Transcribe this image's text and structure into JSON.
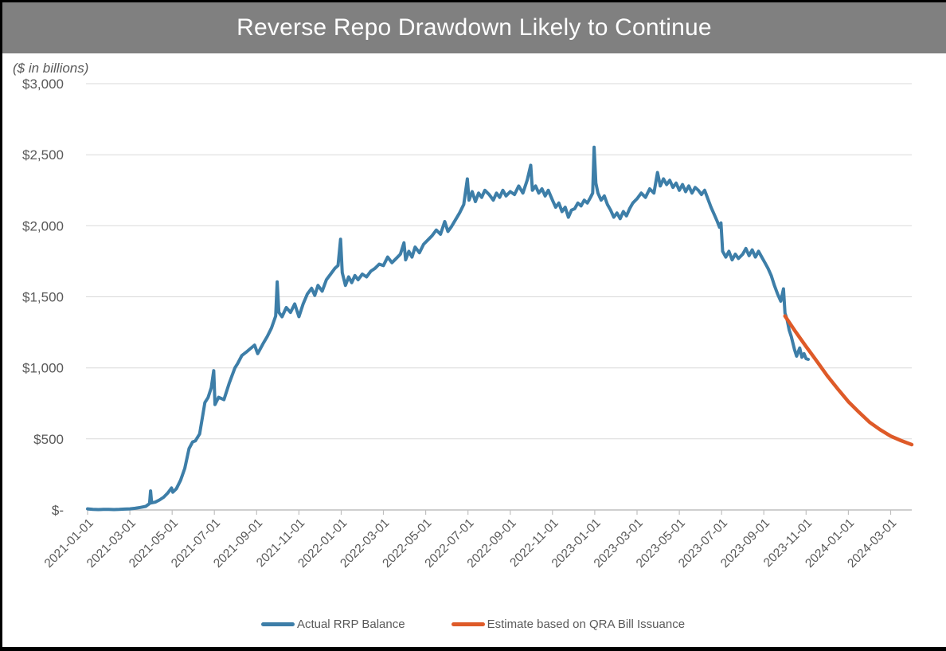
{
  "title": "Reverse Repo Drawdown Likely to Continue",
  "units_note": "($ in billions)",
  "colors": {
    "page_border": "#000000",
    "title_bar_bg": "#808080",
    "title_text": "#FFFFFF",
    "axis_text": "#595959",
    "gridline": "#D9D9D9",
    "axis_line": "#BFBFBF",
    "actual_line": "#3D7EA8",
    "estimate_line": "#DE5A28"
  },
  "chart_data": {
    "type": "line",
    "title": "Reverse Repo Drawdown Likely to Continue",
    "ylabel": "($ in billions)",
    "xlabel": "",
    "grid": "horizontal",
    "legend_position": "bottom",
    "ylim": [
      0,
      3000
    ],
    "ytick_values": [
      3000,
      2500,
      2000,
      1500,
      1000,
      500,
      0
    ],
    "ytick_labels": [
      "$3,000",
      "$2,500",
      "$2,000",
      "$1,500",
      "$1,000",
      "$500",
      "$-"
    ],
    "x_unit": "months since 2021-01-01",
    "xlim_months": [
      0,
      39
    ],
    "xtick_months": [
      0,
      2,
      4,
      6,
      8,
      10,
      12,
      14,
      16,
      18,
      20,
      22,
      24,
      26,
      28,
      30,
      32,
      34,
      36,
      38
    ],
    "xtick_labels": [
      "2021-01-01",
      "2021-03-01",
      "2021-05-01",
      "2021-07-01",
      "2021-09-01",
      "2021-11-01",
      "2022-01-01",
      "2022-03-01",
      "2022-05-01",
      "2022-07-01",
      "2022-09-01",
      "2022-11-01",
      "2023-01-01",
      "2023-03-01",
      "2023-05-01",
      "2023-07-01",
      "2023-09-01",
      "2023-11-01",
      "2024-01-01",
      "2024-03-01"
    ],
    "series": [
      {
        "name": "Actual RRP Balance",
        "color": "#3D7EA8",
        "stroke_width": 4,
        "points": [
          [
            0,
            8
          ],
          [
            0.25,
            4
          ],
          [
            0.5,
            3
          ],
          [
            0.75,
            4
          ],
          [
            1,
            4
          ],
          [
            1.25,
            3
          ],
          [
            1.5,
            4
          ],
          [
            1.75,
            6
          ],
          [
            2,
            8
          ],
          [
            2.25,
            12
          ],
          [
            2.5,
            18
          ],
          [
            2.75,
            25
          ],
          [
            2.93,
            45
          ],
          [
            2.98,
            134
          ],
          [
            3.03,
            50
          ],
          [
            3.2,
            55
          ],
          [
            3.4,
            70
          ],
          [
            3.6,
            90
          ],
          [
            3.8,
            120
          ],
          [
            3.97,
            155
          ],
          [
            4.03,
            125
          ],
          [
            4.2,
            150
          ],
          [
            4.4,
            209
          ],
          [
            4.6,
            294
          ],
          [
            4.8,
            432
          ],
          [
            4.97,
            479
          ],
          [
            5.1,
            486
          ],
          [
            5.3,
            535
          ],
          [
            5.55,
            756
          ],
          [
            5.7,
            791
          ],
          [
            5.85,
            860
          ],
          [
            5.97,
            980
          ],
          [
            6.03,
            742
          ],
          [
            6.2,
            793
          ],
          [
            6.45,
            776
          ],
          [
            6.7,
            891
          ],
          [
            6.97,
            1000
          ],
          [
            7.1,
            1030
          ],
          [
            7.3,
            1087
          ],
          [
            7.5,
            1110
          ],
          [
            7.7,
            1135
          ],
          [
            7.9,
            1160
          ],
          [
            8.05,
            1100
          ],
          [
            8.3,
            1170
          ],
          [
            8.5,
            1220
          ],
          [
            8.7,
            1280
          ],
          [
            8.9,
            1365
          ],
          [
            8.97,
            1605
          ],
          [
            9.05,
            1390
          ],
          [
            9.2,
            1360
          ],
          [
            9.4,
            1425
          ],
          [
            9.6,
            1390
          ],
          [
            9.8,
            1450
          ],
          [
            10,
            1360
          ],
          [
            10.2,
            1450
          ],
          [
            10.4,
            1520
          ],
          [
            10.6,
            1560
          ],
          [
            10.75,
            1510
          ],
          [
            10.9,
            1580
          ],
          [
            11.1,
            1540
          ],
          [
            11.3,
            1620
          ],
          [
            11.5,
            1660
          ],
          [
            11.7,
            1700
          ],
          [
            11.85,
            1720
          ],
          [
            11.97,
            1905
          ],
          [
            12.05,
            1670
          ],
          [
            12.2,
            1580
          ],
          [
            12.35,
            1640
          ],
          [
            12.5,
            1600
          ],
          [
            12.65,
            1650
          ],
          [
            12.8,
            1620
          ],
          [
            13,
            1660
          ],
          [
            13.2,
            1640
          ],
          [
            13.4,
            1680
          ],
          [
            13.6,
            1700
          ],
          [
            13.8,
            1730
          ],
          [
            14,
            1720
          ],
          [
            14.2,
            1780
          ],
          [
            14.4,
            1740
          ],
          [
            14.6,
            1770
          ],
          [
            14.8,
            1800
          ],
          [
            14.97,
            1880
          ],
          [
            15.05,
            1760
          ],
          [
            15.2,
            1820
          ],
          [
            15.35,
            1780
          ],
          [
            15.5,
            1850
          ],
          [
            15.7,
            1810
          ],
          [
            15.9,
            1870
          ],
          [
            16.1,
            1900
          ],
          [
            16.3,
            1930
          ],
          [
            16.5,
            1970
          ],
          [
            16.7,
            1940
          ],
          [
            16.9,
            2030
          ],
          [
            17.05,
            1960
          ],
          [
            17.2,
            1990
          ],
          [
            17.4,
            2040
          ],
          [
            17.6,
            2090
          ],
          [
            17.8,
            2150
          ],
          [
            17.97,
            2330
          ],
          [
            18.05,
            2180
          ],
          [
            18.2,
            2240
          ],
          [
            18.35,
            2170
          ],
          [
            18.5,
            2230
          ],
          [
            18.65,
            2200
          ],
          [
            18.8,
            2250
          ],
          [
            19,
            2220
          ],
          [
            19.2,
            2180
          ],
          [
            19.35,
            2230
          ],
          [
            19.5,
            2200
          ],
          [
            19.65,
            2250
          ],
          [
            19.8,
            2210
          ],
          [
            20,
            2240
          ],
          [
            20.2,
            2220
          ],
          [
            20.4,
            2280
          ],
          [
            20.6,
            2230
          ],
          [
            20.8,
            2320
          ],
          [
            20.97,
            2426
          ],
          [
            21.05,
            2250
          ],
          [
            21.2,
            2280
          ],
          [
            21.35,
            2230
          ],
          [
            21.5,
            2260
          ],
          [
            21.65,
            2210
          ],
          [
            21.8,
            2250
          ],
          [
            22,
            2180
          ],
          [
            22.15,
            2130
          ],
          [
            22.3,
            2160
          ],
          [
            22.45,
            2100
          ],
          [
            22.6,
            2130
          ],
          [
            22.75,
            2060
          ],
          [
            22.9,
            2110
          ],
          [
            23.05,
            2120
          ],
          [
            23.2,
            2160
          ],
          [
            23.35,
            2140
          ],
          [
            23.5,
            2180
          ],
          [
            23.65,
            2160
          ],
          [
            23.8,
            2200
          ],
          [
            23.9,
            2230
          ],
          [
            23.97,
            2553
          ],
          [
            24.05,
            2300
          ],
          [
            24.15,
            2230
          ],
          [
            24.3,
            2180
          ],
          [
            24.45,
            2210
          ],
          [
            24.6,
            2150
          ],
          [
            24.75,
            2110
          ],
          [
            24.9,
            2060
          ],
          [
            25.05,
            2090
          ],
          [
            25.2,
            2050
          ],
          [
            25.35,
            2100
          ],
          [
            25.5,
            2070
          ],
          [
            25.65,
            2120
          ],
          [
            25.8,
            2160
          ],
          [
            26,
            2190
          ],
          [
            26.2,
            2230
          ],
          [
            26.4,
            2200
          ],
          [
            26.6,
            2260
          ],
          [
            26.8,
            2230
          ],
          [
            26.97,
            2375
          ],
          [
            27.1,
            2280
          ],
          [
            27.25,
            2330
          ],
          [
            27.4,
            2290
          ],
          [
            27.55,
            2320
          ],
          [
            27.7,
            2270
          ],
          [
            27.85,
            2300
          ],
          [
            28,
            2250
          ],
          [
            28.15,
            2290
          ],
          [
            28.3,
            2240
          ],
          [
            28.45,
            2280
          ],
          [
            28.6,
            2230
          ],
          [
            28.75,
            2270
          ],
          [
            28.9,
            2250
          ],
          [
            29.05,
            2220
          ],
          [
            29.2,
            2250
          ],
          [
            29.35,
            2190
          ],
          [
            29.5,
            2130
          ],
          [
            29.65,
            2080
          ],
          [
            29.8,
            2030
          ],
          [
            29.9,
            1990
          ],
          [
            29.97,
            2020
          ],
          [
            30.05,
            1820
          ],
          [
            30.2,
            1780
          ],
          [
            30.35,
            1820
          ],
          [
            30.5,
            1760
          ],
          [
            30.65,
            1800
          ],
          [
            30.8,
            1770
          ],
          [
            31,
            1800
          ],
          [
            31.15,
            1840
          ],
          [
            31.3,
            1790
          ],
          [
            31.45,
            1830
          ],
          [
            31.6,
            1780
          ],
          [
            31.75,
            1820
          ],
          [
            31.9,
            1780
          ],
          [
            32.05,
            1740
          ],
          [
            32.2,
            1700
          ],
          [
            32.35,
            1650
          ],
          [
            32.5,
            1580
          ],
          [
            32.65,
            1520
          ],
          [
            32.8,
            1470
          ],
          [
            32.93,
            1556
          ],
          [
            33,
            1385
          ],
          [
            33.1,
            1340
          ],
          [
            33.2,
            1265
          ],
          [
            33.3,
            1220
          ],
          [
            33.45,
            1130
          ],
          [
            33.55,
            1082
          ],
          [
            33.7,
            1140
          ],
          [
            33.8,
            1075
          ],
          [
            33.9,
            1100
          ],
          [
            34,
            1065
          ],
          [
            34.1,
            1060
          ]
        ]
      },
      {
        "name": "Estimate based on QRA Bill Issuance",
        "color": "#DE5A28",
        "stroke_width": 4.5,
        "points": [
          [
            33,
            1365
          ],
          [
            33.5,
            1255
          ],
          [
            34,
            1150
          ],
          [
            34.5,
            1048
          ],
          [
            35,
            945
          ],
          [
            35.5,
            852
          ],
          [
            36,
            762
          ],
          [
            36.5,
            688
          ],
          [
            37,
            618
          ],
          [
            37.5,
            565
          ],
          [
            38,
            520
          ],
          [
            38.5,
            488
          ],
          [
            39,
            460
          ]
        ]
      }
    ]
  }
}
